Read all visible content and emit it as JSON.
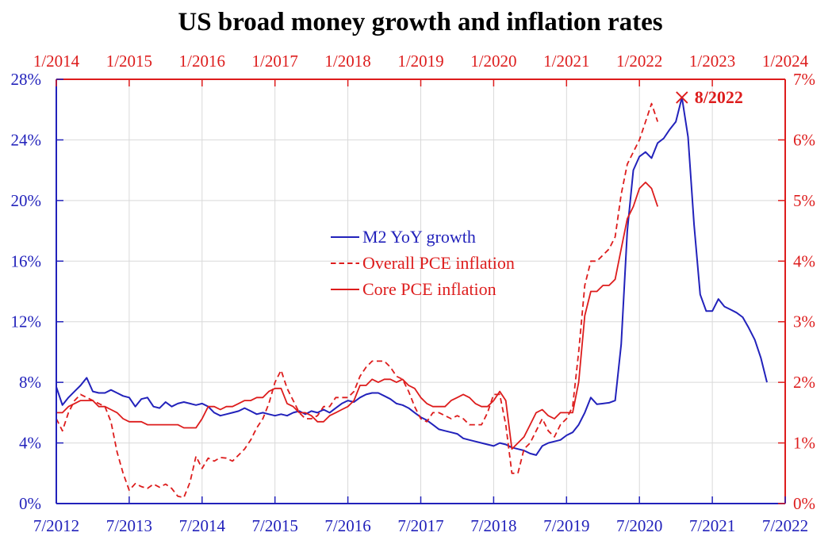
{
  "title": "US broad money growth and inflation rates",
  "colors": {
    "blue": "#2222bb",
    "red": "#dd1c1c",
    "grid": "#d9d9d9",
    "title_text": "#000000",
    "background": "#ffffff"
  },
  "axes": {
    "top": {
      "side": "top",
      "color": "red",
      "tick_labels": [
        "1/2014",
        "1/2015",
        "1/2016",
        "1/2017",
        "1/2018",
        "1/2019",
        "1/2020",
        "1/2021",
        "1/2022",
        "1/2023",
        "1/2024"
      ],
      "range_decimal": [
        2014.0,
        2024.0
      ]
    },
    "bottom": {
      "side": "bottom",
      "color": "blue",
      "tick_labels": [
        "7/2012",
        "7/2013",
        "7/2014",
        "7/2015",
        "7/2016",
        "7/2017",
        "7/2018",
        "7/2019",
        "7/2020",
        "7/2021",
        "7/2022"
      ],
      "range_decimal": [
        2012.5,
        2022.5
      ]
    },
    "left": {
      "side": "left",
      "color": "blue",
      "tick_labels": [
        "0%",
        "4%",
        "8%",
        "12%",
        "16%",
        "20%",
        "24%",
        "28%"
      ],
      "range": [
        0,
        28
      ],
      "tick_step": 4
    },
    "right": {
      "side": "right",
      "color": "red",
      "tick_labels": [
        "0%",
        "1%",
        "2%",
        "3%",
        "4%",
        "5%",
        "6%",
        "7%"
      ],
      "range": [
        0,
        7
      ],
      "tick_step": 1
    }
  },
  "legend": {
    "items": [
      {
        "label": "M2 YoY growth",
        "color": "blue",
        "line_style": "solid"
      },
      {
        "label": "Overall PCE inflation",
        "color": "red",
        "line_style": "dashed"
      },
      {
        "label": "Core PCE inflation",
        "color": "red",
        "line_style": "solid"
      }
    ]
  },
  "annotation": {
    "label": "8/2022",
    "marker": "x",
    "marker_color": "red",
    "x_axis": "bottom",
    "y_axis": "left",
    "date_decimal": 2021.083,
    "value_pct": 26.8
  },
  "chart_data": {
    "type": "line",
    "title": "US broad money growth and inflation rates",
    "grid": true,
    "x_axis_bottom": {
      "start": "7/2012",
      "end": "7/2022",
      "ticks_every": "1 year",
      "color": "blue"
    },
    "x_axis_top": {
      "start": "1/2014",
      "end": "1/2024",
      "ticks_every": "1 year",
      "color": "red"
    },
    "y_axis_left": {
      "unit": "%",
      "min": 0,
      "max": 28,
      "step": 4,
      "applies_to": "M2 YoY growth",
      "color": "blue"
    },
    "y_axis_right": {
      "unit": "%",
      "min": 0,
      "max": 7,
      "step": 1,
      "applies_to": "PCE inflation",
      "color": "red"
    },
    "series": [
      {
        "name": "M2 YoY growth",
        "x_axis": "bottom",
        "y_axis": "left",
        "color": "blue",
        "line_style": "solid",
        "start": "7/2012",
        "start_decimal": 2012.5,
        "interval_months": 1,
        "values_pct": [
          7.7,
          6.5,
          7.0,
          7.4,
          7.8,
          8.3,
          7.4,
          7.3,
          7.3,
          7.5,
          7.3,
          7.1,
          7.0,
          6.4,
          6.9,
          7.0,
          6.4,
          6.3,
          6.7,
          6.4,
          6.6,
          6.7,
          6.6,
          6.5,
          6.6,
          6.4,
          6.0,
          5.8,
          5.9,
          6.0,
          6.1,
          6.3,
          6.1,
          5.9,
          6.0,
          5.9,
          5.8,
          5.9,
          5.8,
          6.0,
          6.1,
          5.9,
          6.1,
          6.0,
          6.2,
          6.0,
          6.3,
          6.6,
          6.8,
          6.7,
          7.0,
          7.2,
          7.3,
          7.3,
          7.1,
          6.9,
          6.6,
          6.5,
          6.3,
          6.0,
          5.7,
          5.5,
          5.2,
          4.9,
          4.8,
          4.7,
          4.6,
          4.3,
          4.2,
          4.1,
          4.0,
          3.9,
          3.8,
          4.0,
          3.9,
          3.7,
          3.6,
          3.5,
          3.3,
          3.2,
          3.8,
          4.0,
          4.1,
          4.2,
          4.5,
          4.7,
          5.2,
          6.0,
          7.0,
          6.55,
          6.6,
          6.65,
          6.8,
          10.5,
          18.0,
          22.0,
          22.9,
          23.2,
          22.8,
          23.8,
          24.1,
          24.7,
          25.2,
          26.8,
          24.2,
          18.4,
          13.8,
          12.7,
          12.7,
          13.5,
          13.0,
          12.8,
          12.6,
          12.3,
          11.6,
          10.8,
          9.6,
          8.0
        ]
      },
      {
        "name": "Overall PCE inflation",
        "x_axis": "top",
        "y_axis": "right",
        "color": "red",
        "line_style": "dashed",
        "start": "1/2014",
        "start_decimal": 2014.0,
        "interval_months": 1,
        "values_pct": [
          1.4,
          1.2,
          1.5,
          1.7,
          1.8,
          1.75,
          1.7,
          1.65,
          1.6,
          1.35,
          0.85,
          0.5,
          0.22,
          0.33,
          0.28,
          0.25,
          0.32,
          0.27,
          0.32,
          0.25,
          0.12,
          0.1,
          0.35,
          0.78,
          0.58,
          0.75,
          0.7,
          0.76,
          0.75,
          0.7,
          0.8,
          0.9,
          1.05,
          1.25,
          1.4,
          1.65,
          2.0,
          2.2,
          1.9,
          1.7,
          1.5,
          1.4,
          1.4,
          1.45,
          1.6,
          1.6,
          1.75,
          1.75,
          1.75,
          1.85,
          2.1,
          2.25,
          2.35,
          2.35,
          2.35,
          2.25,
          2.1,
          2.05,
          1.85,
          1.6,
          1.4,
          1.35,
          1.5,
          1.5,
          1.45,
          1.4,
          1.45,
          1.4,
          1.3,
          1.3,
          1.3,
          1.5,
          1.8,
          1.8,
          1.3,
          0.5,
          0.5,
          0.9,
          1.0,
          1.2,
          1.4,
          1.2,
          1.1,
          1.3,
          1.4,
          1.6,
          2.5,
          3.6,
          4.0,
          4.0,
          4.1,
          4.2,
          4.4,
          5.1,
          5.6,
          5.8,
          6.0,
          6.3,
          6.6,
          6.3
        ]
      },
      {
        "name": "Core PCE inflation",
        "x_axis": "top",
        "y_axis": "right",
        "color": "red",
        "line_style": "solid",
        "start": "1/2014",
        "start_decimal": 2014.0,
        "interval_months": 1,
        "values_pct": [
          1.5,
          1.5,
          1.6,
          1.65,
          1.7,
          1.7,
          1.7,
          1.6,
          1.6,
          1.55,
          1.5,
          1.4,
          1.35,
          1.35,
          1.35,
          1.3,
          1.3,
          1.3,
          1.3,
          1.3,
          1.3,
          1.25,
          1.25,
          1.25,
          1.4,
          1.6,
          1.6,
          1.55,
          1.6,
          1.6,
          1.65,
          1.7,
          1.7,
          1.75,
          1.75,
          1.85,
          1.9,
          1.9,
          1.65,
          1.6,
          1.5,
          1.5,
          1.45,
          1.35,
          1.35,
          1.45,
          1.5,
          1.55,
          1.6,
          1.7,
          1.95,
          1.95,
          2.05,
          2.0,
          2.05,
          2.05,
          2.0,
          2.05,
          1.95,
          1.9,
          1.75,
          1.65,
          1.6,
          1.6,
          1.6,
          1.7,
          1.75,
          1.8,
          1.75,
          1.65,
          1.6,
          1.6,
          1.7,
          1.85,
          1.7,
          0.9,
          1.0,
          1.1,
          1.3,
          1.5,
          1.55,
          1.45,
          1.4,
          1.5,
          1.5,
          1.5,
          2.0,
          3.1,
          3.5,
          3.5,
          3.6,
          3.6,
          3.7,
          4.2,
          4.7,
          4.9,
          5.2,
          5.3,
          5.2,
          4.9
        ]
      }
    ]
  }
}
